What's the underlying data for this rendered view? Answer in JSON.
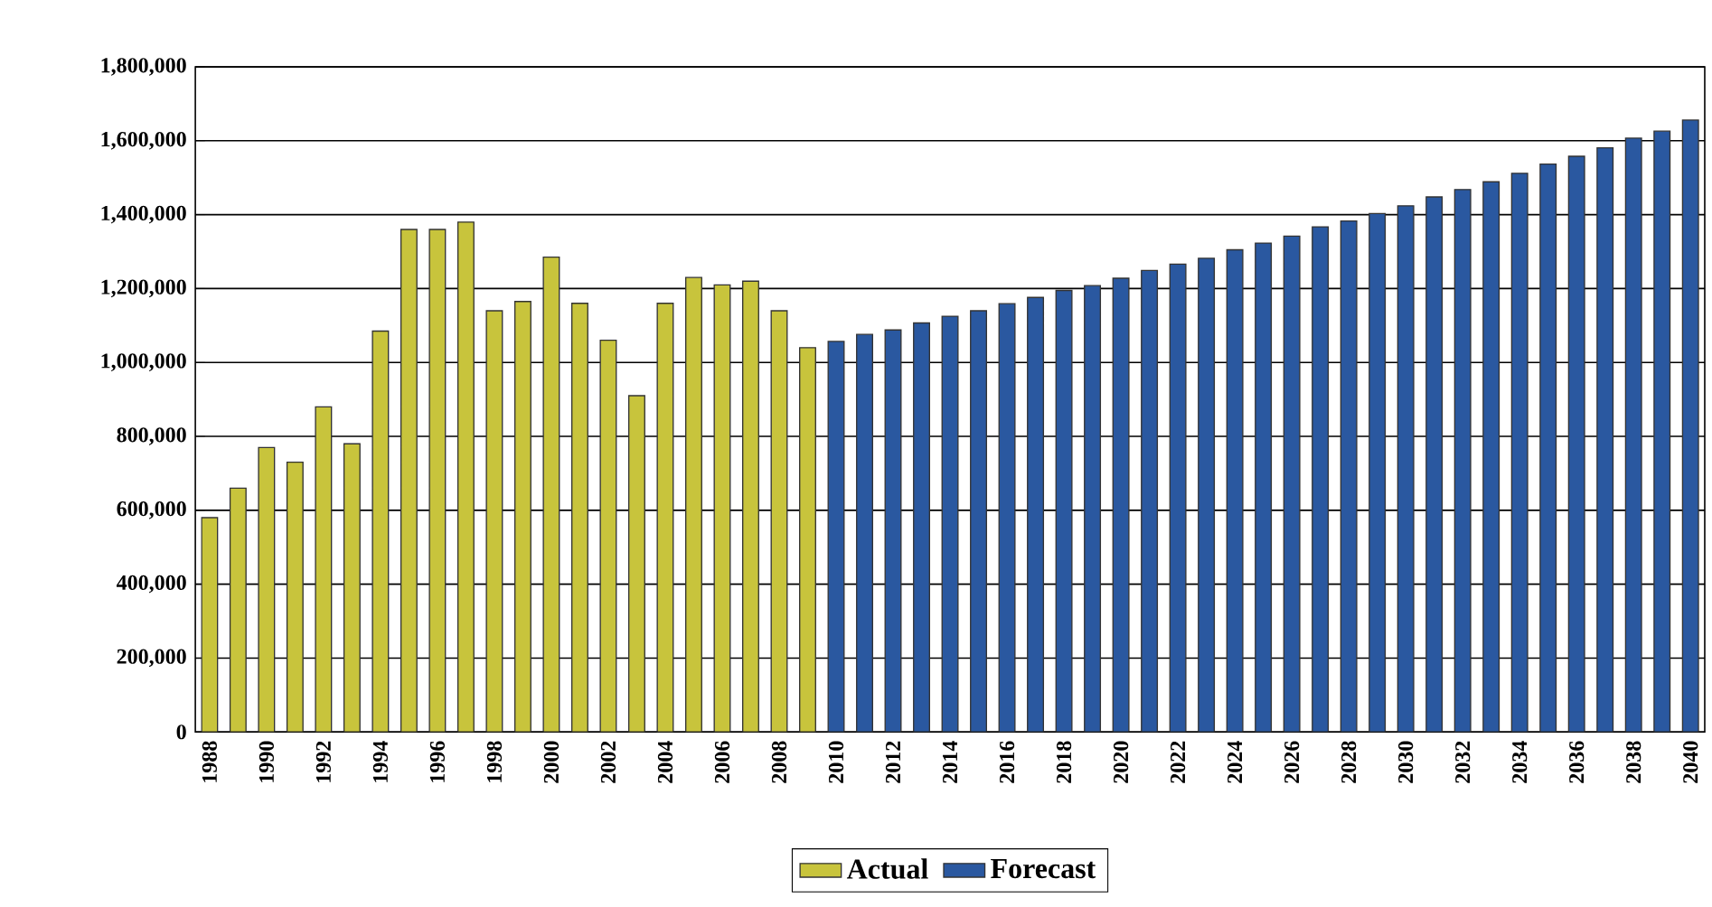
{
  "chart_data": {
    "type": "bar",
    "categories": [
      "1988",
      null,
      "1990",
      null,
      "1992",
      null,
      "1994",
      null,
      "1996",
      null,
      "1998",
      null,
      "2000",
      null,
      "2002",
      null,
      "2004",
      null,
      "2006",
      null,
      "2008",
      null,
      "2010",
      null,
      "2012",
      null,
      "2014",
      null,
      "2016",
      null,
      "2018",
      null,
      "2020",
      null,
      "2022",
      null,
      "2024",
      null,
      "2026",
      null,
      "2028",
      null,
      "2030",
      null,
      "2032",
      null,
      "2034",
      null,
      "2036",
      null,
      "2038",
      null,
      "2040"
    ],
    "series": [
      {
        "name": "Actual",
        "color": "#c8c43c",
        "values": [
          580000,
          660000,
          770000,
          730000,
          880000,
          780000,
          1085000,
          1360000,
          1360000,
          1380000,
          1140000,
          1165000,
          1285000,
          1160000,
          1060000,
          910000,
          1160000,
          1230000,
          1210000,
          1220000,
          1140000,
          1040000,
          null,
          null,
          null,
          null,
          null,
          null,
          null,
          null,
          null,
          null,
          null,
          null,
          null,
          null,
          null,
          null,
          null,
          null,
          null,
          null,
          null,
          null,
          null,
          null,
          null,
          null,
          null,
          null,
          null,
          null,
          null
        ]
      },
      {
        "name": "Forecast",
        "color": "#2a58a0",
        "values": [
          null,
          null,
          null,
          null,
          null,
          null,
          null,
          null,
          null,
          null,
          null,
          null,
          null,
          null,
          null,
          null,
          null,
          null,
          null,
          null,
          null,
          null,
          1057000,
          1076000,
          1088000,
          1107000,
          1125000,
          1140000,
          1159000,
          1176000,
          1195000,
          1208000,
          1228000,
          1249000,
          1266000,
          1282000,
          1305000,
          1323000,
          1342000,
          1367000,
          1383000,
          1403000,
          1424000,
          1448000,
          1468000,
          1489000,
          1512000,
          1537000,
          1558000,
          1581000,
          1607000,
          1626000,
          1656000
        ]
      }
    ],
    "ylim": [
      0,
      1800000
    ],
    "yticks": [
      {
        "value": 0,
        "label": "0"
      },
      {
        "value": 200000,
        "label": "200,000"
      },
      {
        "value": 400000,
        "label": "400,000"
      },
      {
        "value": 600000,
        "label": "600,000"
      },
      {
        "value": 800000,
        "label": "800,000"
      },
      {
        "value": 1000000,
        "label": "1,000,000"
      },
      {
        "value": 1200000,
        "label": "1,200,000"
      },
      {
        "value": 1400000,
        "label": "1,400,000"
      },
      {
        "value": 1600000,
        "label": "1,600,000"
      },
      {
        "value": 1800000,
        "label": "1,800,000"
      }
    ],
    "grid": "y",
    "legend": "bottom"
  }
}
